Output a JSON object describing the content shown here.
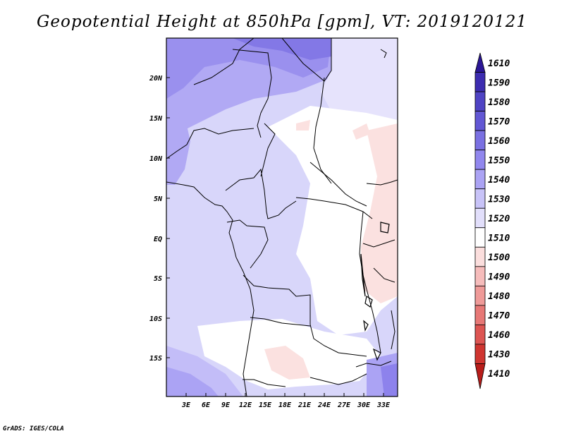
{
  "title": "Geopotential Height at 850hPa [gpm], VT: 2019120121",
  "footer": "GrADS: IGES/COLA",
  "map": {
    "lat_labels": [
      "20N",
      "15N",
      "10N",
      "5N",
      "EQ",
      "5S",
      "10S",
      "15S"
    ],
    "lon_labels": [
      "3E",
      "6E",
      "9E",
      "12E",
      "15E",
      "18E",
      "21E",
      "24E",
      "27E",
      "30E",
      "33E"
    ]
  },
  "colorbar": {
    "levels": [
      "1610",
      "1590",
      "1580",
      "1570",
      "1560",
      "1550",
      "1540",
      "1530",
      "1520",
      "1510",
      "1500",
      "1490",
      "1480",
      "1470",
      "1460",
      "1430",
      "1410"
    ],
    "colors": [
      "#2b1696",
      "#3c2cb0",
      "#4f43c4",
      "#6257d4",
      "#7a70e2",
      "#9187ee",
      "#aba3f4",
      "#c8c3f8",
      "#e2dffb",
      "#ffffff",
      "#fbdedd",
      "#f6bcbb",
      "#ef9a98",
      "#e77876",
      "#dd5552",
      "#cf3530",
      "#b81d1a"
    ]
  }
}
